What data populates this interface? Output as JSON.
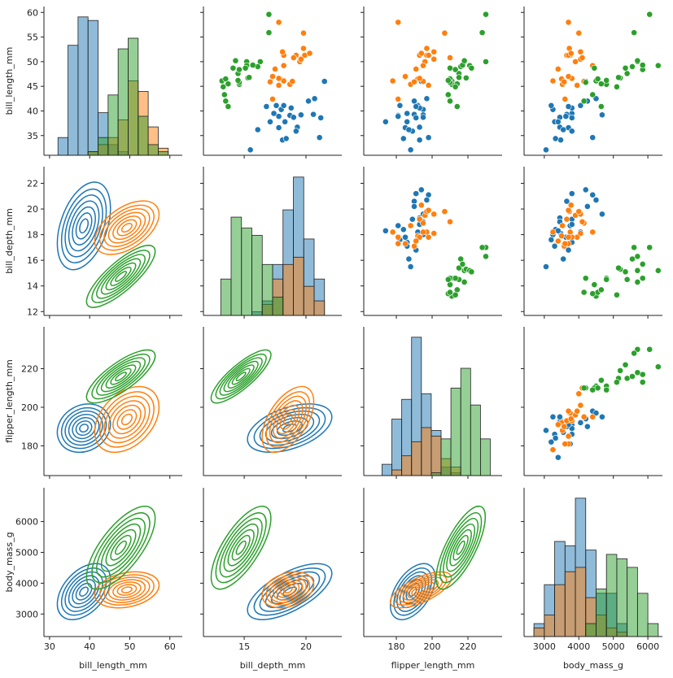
{
  "chart_data": {
    "type": "pairplot",
    "variables": [
      {
        "label": "bill_length_mm",
        "xlim": [
          28.6,
          63.1
        ],
        "ylim": [
          31,
          61.2
        ],
        "xticks": [
          30,
          40,
          50,
          60
        ],
        "yticks": [
          35,
          40,
          45,
          50,
          55,
          60
        ],
        "bins": [
          32.1,
          34.6,
          37.1,
          39.6,
          42.1,
          44.6,
          47.1,
          49.6,
          52.1,
          54.6,
          57.1,
          59.6
        ],
        "hist": [
          [
            5,
            31,
            39,
            38,
            12,
            3,
            1,
            0,
            0,
            0,
            0
          ],
          [
            0,
            0,
            0,
            1,
            3,
            5,
            10,
            21,
            18,
            8,
            2
          ],
          [
            0,
            0,
            0,
            1,
            5,
            17,
            30,
            33,
            11,
            3,
            1
          ]
        ]
      },
      {
        "label": "bill_depth_mm",
        "xlim": [
          11.7,
          22.9
        ],
        "ylim": [
          11.7,
          23.3
        ],
        "xticks": [
          15,
          20
        ],
        "yticks": [
          12,
          14,
          16,
          18,
          20,
          22
        ],
        "bins": [
          13.1,
          13.94,
          14.78,
          15.62,
          16.46,
          17.3,
          18.14,
          18.98,
          19.82,
          20.66,
          21.5
        ],
        "hist": [
          [
            0,
            0,
            0,
            1,
            4,
            14,
            29,
            38,
            21,
            10
          ],
          [
            0,
            0,
            0,
            0,
            3,
            10,
            14,
            16,
            8,
            4
          ],
          [
            10,
            27,
            24,
            22,
            14,
            5,
            0,
            0,
            0,
            0
          ]
        ]
      },
      {
        "label": "flipper_length_mm",
        "xlim": [
          161.8,
          239.1
        ],
        "ylim": [
          164.6,
          241.7
        ],
        "xticks": [
          180,
          200,
          220
        ],
        "yticks": [
          180,
          200,
          220
        ],
        "bins": [
          172,
          177.5,
          183,
          188.5,
          194,
          199.5,
          205,
          210.5,
          216,
          221.5,
          227,
          232.5
        ],
        "hist": [
          [
            4,
            20,
            27,
            49,
            29,
            16,
            3,
            1,
            0,
            0,
            0
          ],
          [
            0,
            2,
            7,
            12,
            17,
            14,
            6,
            3,
            0,
            0,
            0
          ],
          [
            0,
            0,
            0,
            0,
            0,
            1,
            13,
            31,
            38,
            25,
            13
          ]
        ]
      },
      {
        "label": "body_mass_g",
        "xlim": [
          2414,
          6422
        ],
        "ylim": [
          2270,
          7096
        ],
        "xticks": [
          3000,
          4000,
          5000,
          6000
        ],
        "yticks": [
          3000,
          4000,
          5000,
          6000
        ],
        "bins": [
          2700,
          3000,
          3300,
          3600,
          3900,
          4200,
          4500,
          4800,
          5100,
          5400,
          5700,
          6000,
          6300
        ],
        "hist": [
          [
            3,
            12,
            22,
            21,
            32,
            20,
            10,
            10,
            3,
            0,
            0,
            0
          ],
          [
            2,
            5,
            12,
            15,
            16,
            9,
            5,
            2,
            1,
            0,
            0,
            0
          ],
          [
            0,
            0,
            0,
            0,
            0,
            3,
            11,
            19,
            18,
            16,
            10,
            3
          ]
        ]
      }
    ],
    "series": [
      {
        "color": "#1f77b4",
        "points": [
          [
            39.1,
            18.7,
            181,
            3750
          ],
          [
            39.5,
            17.4,
            186,
            3800
          ],
          [
            40.3,
            18,
            195,
            3250
          ],
          [
            36.7,
            19.3,
            193,
            3450
          ],
          [
            39.3,
            20.6,
            190,
            3650
          ],
          [
            38.9,
            17.8,
            181,
            3625
          ],
          [
            39.2,
            19.6,
            195,
            4675
          ],
          [
            34.1,
            18.1,
            193,
            3475
          ],
          [
            42,
            20.2,
            190,
            4250
          ],
          [
            37.8,
            17.1,
            186,
            3300
          ],
          [
            41.1,
            17.6,
            182,
            3200
          ],
          [
            38.6,
            21.2,
            191,
            3800
          ],
          [
            34.6,
            21.1,
            198,
            4400
          ],
          [
            36.6,
            17.8,
            185,
            3700
          ],
          [
            38.7,
            19,
            195,
            3450
          ],
          [
            42.5,
            20.7,
            197,
            4500
          ],
          [
            34.4,
            18.4,
            184,
            3325
          ],
          [
            46,
            21.5,
            194,
            4200
          ],
          [
            37.8,
            18.3,
            174,
            3400
          ],
          [
            35.9,
            19.2,
            189,
            3800
          ],
          [
            41.1,
            18.2,
            192,
            4050
          ],
          [
            36.2,
            16.1,
            187,
            3550
          ],
          [
            40.6,
            18.8,
            193,
            3800
          ],
          [
            32.1,
            15.5,
            188,
            3050
          ],
          [
            40.9,
            16.8,
            191,
            3700
          ]
        ]
      },
      {
        "color": "#ff7f0e",
        "points": [
          [
            46.5,
            17.9,
            192,
            3500
          ],
          [
            50,
            19.5,
            196,
            3900
          ],
          [
            51.3,
            19.2,
            193,
            3650
          ],
          [
            45.4,
            18.7,
            188,
            3525
          ],
          [
            52.7,
            19.8,
            197,
            3725
          ],
          [
            45.2,
            17.8,
            198,
            3950
          ],
          [
            46.1,
            18.2,
            178,
            3250
          ],
          [
            51.3,
            18.2,
            197,
            3750
          ],
          [
            46,
            18.9,
            195,
            4150
          ],
          [
            51.3,
            19.9,
            198,
            3700
          ],
          [
            46.6,
            17.8,
            193,
            3800
          ],
          [
            51.7,
            20.3,
            194,
            3775
          ],
          [
            47,
            17.3,
            185,
            3700
          ],
          [
            52,
            18.1,
            201,
            4050
          ],
          [
            45.9,
            17.1,
            190,
            3575
          ],
          [
            50.5,
            19.6,
            201,
            4050
          ],
          [
            58,
            17.8,
            181,
            3700
          ],
          [
            49.2,
            18.2,
            195,
            4400
          ],
          [
            42.4,
            17.3,
            181,
            3600
          ],
          [
            48.5,
            17.5,
            191,
            3400
          ],
          [
            50.8,
            19,
            210,
            4100
          ],
          [
            55.8,
            19.8,
            207,
            4000
          ]
        ]
      },
      {
        "color": "#2ca02c",
        "points": [
          [
            46.1,
            13.2,
            211,
            4500
          ],
          [
            50,
            16.3,
            230,
            5700
          ],
          [
            48.7,
            14.1,
            210,
            4450
          ],
          [
            50,
            15.2,
            218,
            5700
          ],
          [
            47.6,
            14.5,
            215,
            5400
          ],
          [
            46.5,
            13.5,
            210,
            4550
          ],
          [
            45.4,
            14.6,
            211,
            4800
          ],
          [
            46.7,
            15.3,
            219,
            5200
          ],
          [
            43.3,
            13.4,
            209,
            4400
          ],
          [
            46.8,
            15.4,
            215,
            5150
          ],
          [
            40.9,
            13.7,
            214,
            4650
          ],
          [
            49,
            16.1,
            216,
            5550
          ],
          [
            45.5,
            13.7,
            214,
            4650
          ],
          [
            48.4,
            14.6,
            213,
            5850
          ],
          [
            45.8,
            14.6,
            210,
            4200
          ],
          [
            49.3,
            15.7,
            217,
            5850
          ],
          [
            42,
            13.5,
            210,
            4150
          ],
          [
            49.2,
            15.2,
            221,
            6300
          ],
          [
            46.2,
            14.5,
            209,
            4800
          ],
          [
            48.7,
            15.1,
            222,
            5350
          ],
          [
            50.2,
            14.3,
            218,
            5700
          ],
          [
            59.6,
            17,
            230,
            6050
          ],
          [
            44.9,
            13.3,
            213,
            5100
          ],
          [
            55.9,
            17,
            228,
            5600
          ]
        ]
      }
    ]
  }
}
